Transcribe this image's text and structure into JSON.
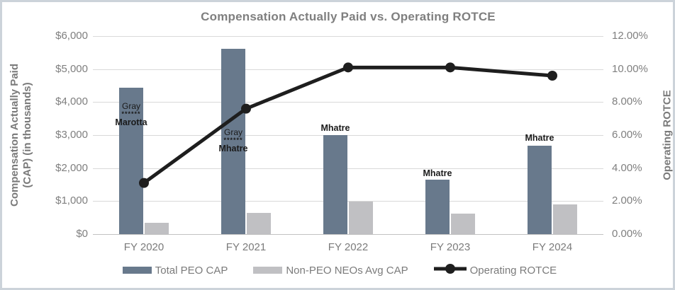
{
  "chart_data": {
    "type": "bar+line combo",
    "title": "Compensation Actually Paid vs. Operating ROTCE",
    "categories": [
      "FY 2020",
      "FY 2021",
      "FY 2022",
      "FY 2023",
      "FY 2024"
    ],
    "series": [
      {
        "name": "Total PEO CAP",
        "type": "bar",
        "axis": "left",
        "color": "#68798C",
        "values": [
          4440,
          5610,
          3000,
          1640,
          2680
        ]
      },
      {
        "name": "Non-PEO NEOs Avg CAP",
        "type": "bar",
        "axis": "left",
        "color": "#C0C0C3",
        "values": [
          340,
          640,
          990,
          630,
          890
        ]
      },
      {
        "name": "Operating ROTCE",
        "type": "line",
        "axis": "right",
        "color": "#1e1e1e",
        "values": [
          3.1,
          7.6,
          10.1,
          10.1,
          9.6
        ]
      }
    ],
    "bar_labels": [
      {
        "category": "FY 2020",
        "lines": [
          "Gray",
          "******",
          "Marotta"
        ],
        "placement": "inside-bar",
        "y": 140
      },
      {
        "category": "FY 2021",
        "lines": [
          "Gray",
          "******",
          "Mhatre"
        ],
        "placement": "inside-bar",
        "y": 177
      },
      {
        "category": "FY 2022",
        "lines": [
          "Mhatre"
        ],
        "placement": "above-bar",
        "y": 171
      },
      {
        "category": "FY 2023",
        "lines": [
          "Mhatre"
        ],
        "placement": "above-bar",
        "y": 235
      },
      {
        "category": "FY 2024",
        "lines": [
          "Mhatre"
        ],
        "placement": "above-bar",
        "y": 185
      }
    ],
    "left_axis": {
      "title": "Compensation Actually Paid (CAP) (in thousands)",
      "title_lines": [
        "Compensation Actually Paid",
        "(CAP) (in thousands)"
      ],
      "ticks": [
        "$6,000",
        "$5,000",
        "$4,000",
        "$3,000",
        "$2,000",
        "$1,000",
        "$0"
      ],
      "min": 0,
      "max": 6000
    },
    "right_axis": {
      "title": "Operating ROTCE",
      "ticks": [
        "12.00%",
        "10.00%",
        "8.00%",
        "6.00%",
        "4.00%",
        "2.00%",
        "0.00%"
      ],
      "min": 0,
      "max": 12
    },
    "legend": [
      "Total PEO CAP",
      "Non-PEO NEOs Avg CAP",
      "Operating ROTCE"
    ],
    "grid": "horizontal",
    "legend_position": "bottom",
    "colors": {
      "title_text": "#7f7f7f",
      "axis_text": "#7f7f7f",
      "gridline": "#d9d9d9",
      "frame_border": "#ccd3da",
      "bar_dark": "#68798C",
      "bar_light": "#C0C0C3",
      "line": "#1e1e1e"
    }
  }
}
